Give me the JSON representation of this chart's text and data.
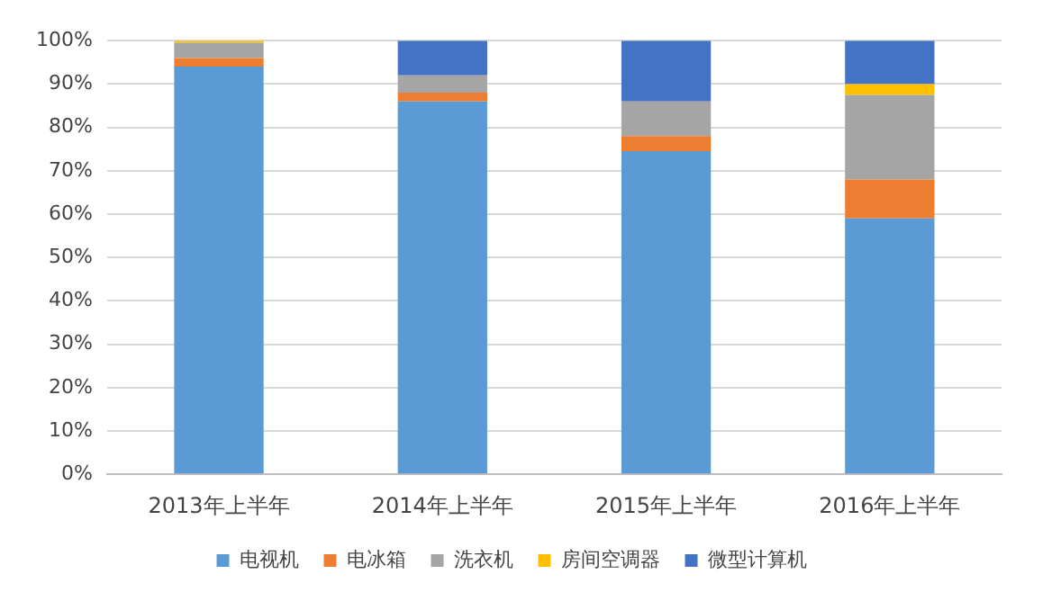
{
  "chart_data": {
    "type": "bar",
    "stacked": true,
    "categories": [
      "2013年上半年",
      "2014年上半年",
      "2015年上半年",
      "2016年上半年"
    ],
    "series": [
      {
        "name": "电视机",
        "color": "#5b9bd5",
        "values": [
          94,
          86,
          74.5,
          59
        ]
      },
      {
        "name": "电冰箱",
        "color": "#ed7d31",
        "values": [
          2,
          2,
          3.5,
          9
        ]
      },
      {
        "name": "洗衣机",
        "color": "#a5a5a5",
        "values": [
          3.5,
          4,
          8,
          19.5
        ]
      },
      {
        "name": "房间空调器",
        "color": "#ffc000",
        "values": [
          0.5,
          0,
          0,
          2.5
        ]
      },
      {
        "name": "微型计算机",
        "color": "#4472c4",
        "values": [
          0,
          8,
          14,
          10
        ]
      }
    ],
    "ylim": [
      0,
      100
    ],
    "yticks": [
      {
        "value": 0,
        "label": "0%"
      },
      {
        "value": 10,
        "label": "10%"
      },
      {
        "value": 20,
        "label": "20%"
      },
      {
        "value": 30,
        "label": "30%"
      },
      {
        "value": 40,
        "label": "40%"
      },
      {
        "value": 50,
        "label": "50%"
      },
      {
        "value": 60,
        "label": "60%"
      },
      {
        "value": 70,
        "label": "70%"
      },
      {
        "value": 80,
        "label": "80%"
      },
      {
        "value": 90,
        "label": "90%"
      },
      {
        "value": 100,
        "label": "100%"
      }
    ],
    "grid": "y",
    "legend": "bottom"
  }
}
